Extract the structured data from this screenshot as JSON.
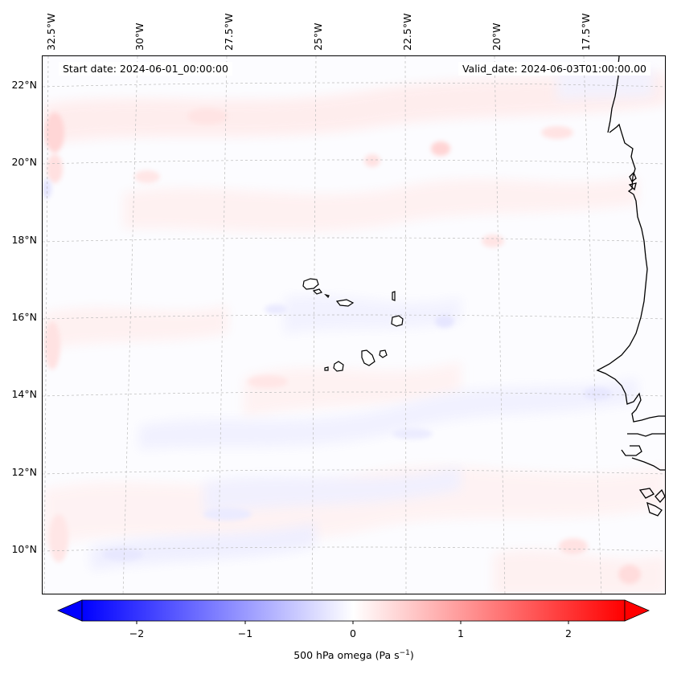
{
  "map": {
    "start_date": "Start date: 2024-06-01_00:00:00",
    "valid_date": "Valid_date: 2024-06-03T01:00:00.00",
    "lon_labels": [
      "32.5°W",
      "30°W",
      "27.5°W",
      "25°W",
      "22.5°W",
      "20°W",
      "17.5°W"
    ],
    "lat_labels": [
      "22°N",
      "20°N",
      "18°N",
      "16°N",
      "14°N",
      "12°N",
      "10°N"
    ],
    "coastline_color": "#000000",
    "gridline_color": "#bbbbbb"
  },
  "colorbar": {
    "ticks": [
      "−2",
      "−1",
      "0",
      "1",
      "2"
    ],
    "label_prefix": "500 hPa omega (Pa s",
    "label_exp": "−1",
    "label_suffix": ")",
    "colormap": "bwr",
    "range": [
      -2.6,
      2.6
    ],
    "extend": "both"
  }
}
